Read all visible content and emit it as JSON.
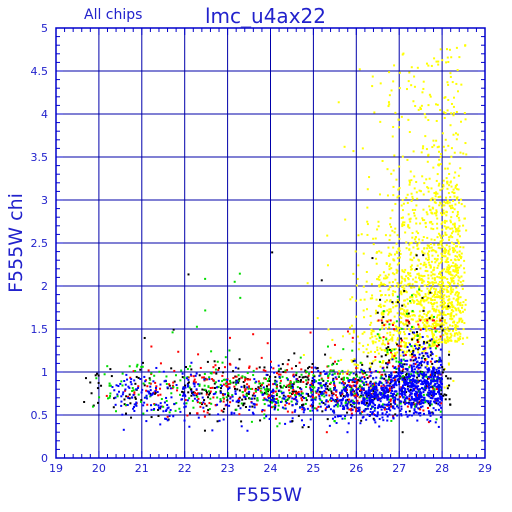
{
  "chart_data": {
    "type": "scatter",
    "title": "lmc_u4ax22",
    "subtitle": "All chips",
    "xlabel": "F555W",
    "ylabel": "F555W chi",
    "xlim": [
      19,
      29
    ],
    "ylim": [
      0,
      5
    ],
    "grid": true,
    "x_ticks": [
      "19",
      "20",
      "21",
      "22",
      "23",
      "24",
      "25",
      "26",
      "27",
      "28",
      "29"
    ],
    "y_ticks": [
      "0",
      "0.5",
      "1",
      "1.5",
      "2",
      "2.5",
      "3",
      "3.5",
      "4",
      "4.5",
      "5"
    ],
    "colors": {
      "axis": "#0000cc",
      "grid": "#0000aa",
      "label": "#2222cc",
      "series_yellow": "#ffff00",
      "series_black": "#000000",
      "series_red": "#ff0000",
      "series_green": "#00dd00",
      "series_blue": "#0000ff"
    },
    "series": [
      {
        "color": "yellow",
        "description_points": [
          {
            "x_min": 23.8,
            "x_max": 28.6,
            "y_min": 0.6,
            "y_max": 4.8,
            "density_peak_x": 26.8,
            "density_peak_y": 1.6,
            "count": 1600
          }
        ]
      },
      {
        "color": "black",
        "description_points": [
          {
            "x_min": 19.5,
            "x_max": 28.2,
            "y_min": 0.3,
            "y_max": 2.5,
            "density_peak_x": 27.2,
            "density_peak_y": 1.2,
            "count": 500
          }
        ]
      },
      {
        "color": "red",
        "description_points": [
          {
            "x_min": 20.0,
            "x_max": 28.0,
            "y_min": 0.3,
            "y_max": 1.6,
            "density_peak_x": 26.5,
            "density_peak_y": 0.8,
            "count": 450
          }
        ]
      },
      {
        "color": "green",
        "description_points": [
          {
            "x_min": 19.7,
            "x_max": 28.0,
            "y_min": 0.3,
            "y_max": 2.2,
            "density_peak_x": 26.5,
            "density_peak_y": 0.8,
            "count": 450
          }
        ]
      },
      {
        "color": "blue",
        "description_points": [
          {
            "x_min": 20.3,
            "x_max": 28.0,
            "y_min": 0.3,
            "y_max": 1.5,
            "density_peak_x": 27.5,
            "density_peak_y": 0.7,
            "count": 1200
          }
        ]
      }
    ]
  }
}
